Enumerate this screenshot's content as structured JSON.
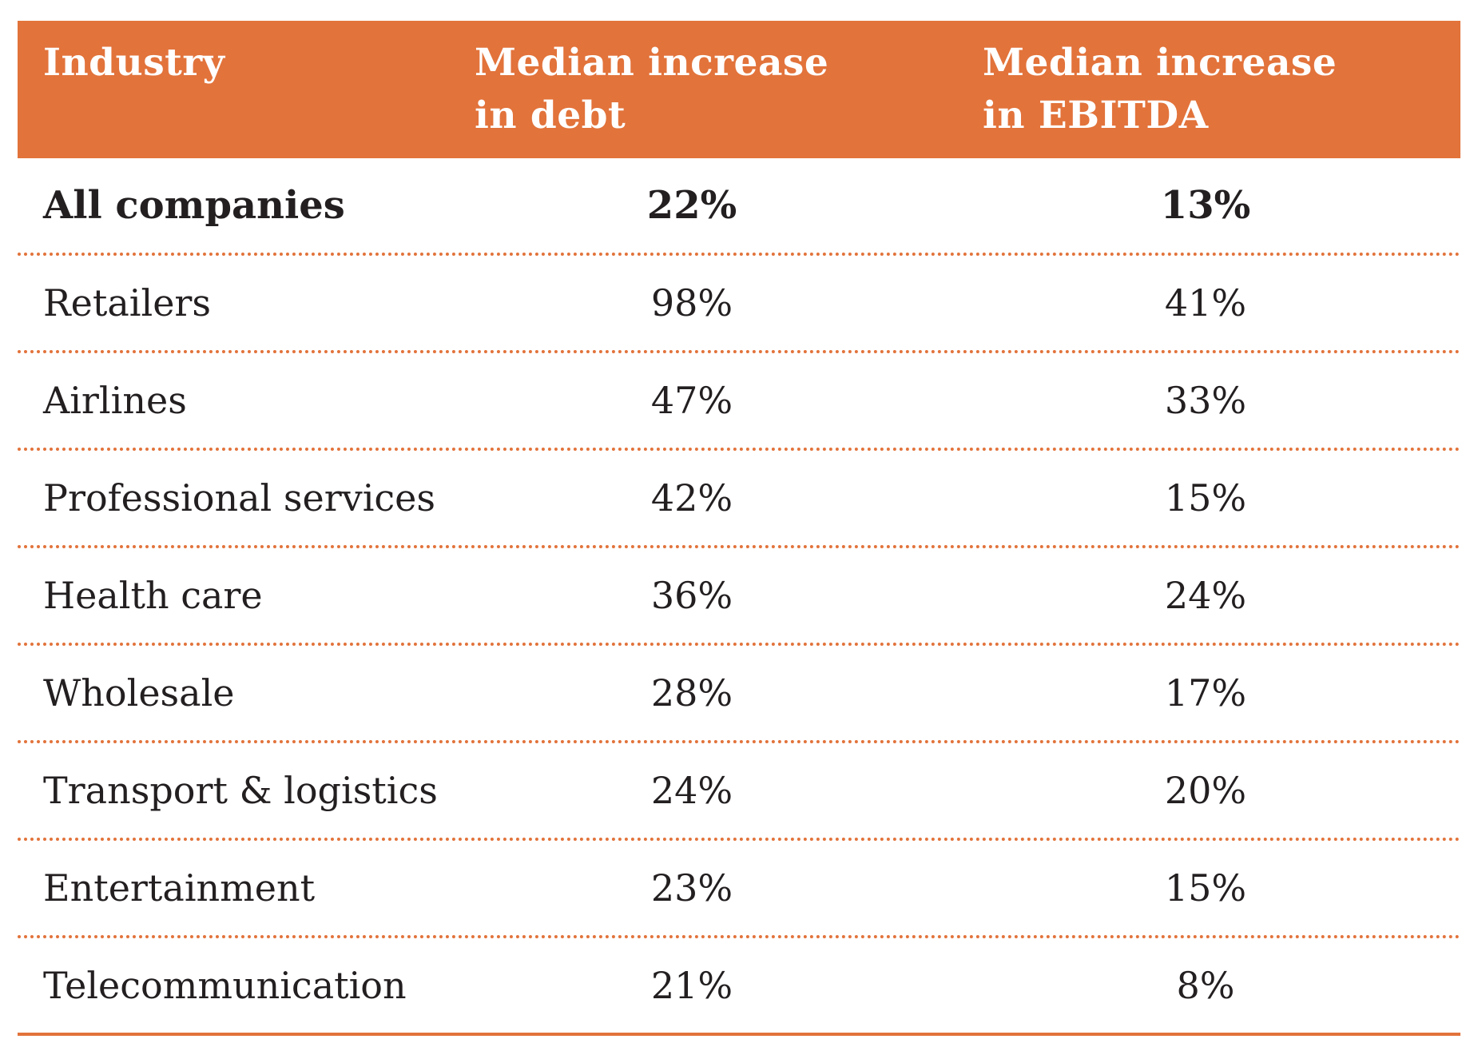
{
  "chart_data": {
    "type": "table",
    "columns": [
      "Industry",
      "Median increase in debt",
      "Median increase in EBITDA"
    ],
    "header_lines": {
      "industry": [
        "Industry"
      ],
      "debt": [
        "Median increase",
        "in debt"
      ],
      "ebitda": [
        "Median increase",
        "in EBITDA"
      ]
    },
    "rows": [
      {
        "industry": "All companies",
        "debt": "22%",
        "ebitda": "13%",
        "bold": true
      },
      {
        "industry": "Retailers",
        "debt": "98%",
        "ebitda": "41%"
      },
      {
        "industry": "Airlines",
        "debt": "47%",
        "ebitda": "33%"
      },
      {
        "industry": "Professional services",
        "debt": "42%",
        "ebitda": "15%"
      },
      {
        "industry": "Health care",
        "debt": "36%",
        "ebitda": "24%"
      },
      {
        "industry": "Wholesale",
        "debt": "28%",
        "ebitda": "17%"
      },
      {
        "industry": "Transport & logistics",
        "debt": "24%",
        "ebitda": "20%"
      },
      {
        "industry": "Entertainment",
        "debt": "23%",
        "ebitda": "15%"
      },
      {
        "industry": "Telecommunication",
        "debt": "21%",
        "ebitda": "8%"
      }
    ]
  },
  "colors": {
    "header_bg": "#e2733b",
    "header_text": "#ffffff",
    "divider": "#e2733b",
    "body_text": "#231f20"
  }
}
